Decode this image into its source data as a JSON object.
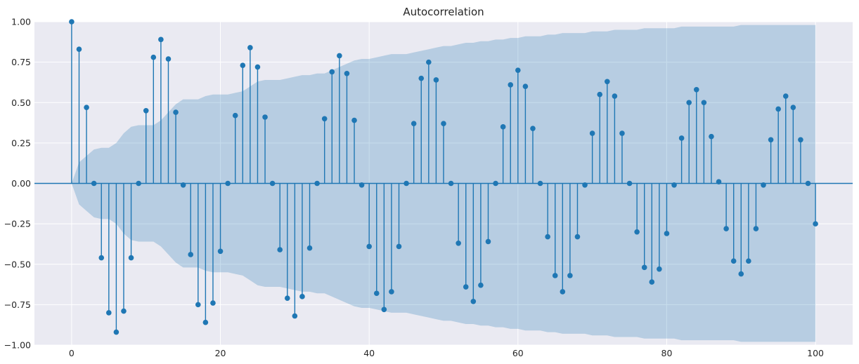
{
  "chart_data": {
    "type": "stem",
    "title": "Autocorrelation",
    "xlabel": "",
    "ylabel": "",
    "xlim": [
      -5,
      105
    ],
    "ylim": [
      -1.0,
      1.0
    ],
    "xticks": [
      0,
      20,
      40,
      60,
      80,
      100
    ],
    "xtick_labels": [
      "0",
      "20",
      "40",
      "60",
      "80",
      "100"
    ],
    "yticks": [
      1.0,
      0.75,
      0.5,
      0.25,
      0.0,
      -0.25,
      -0.5,
      -0.75,
      -1.0
    ],
    "ytick_labels": [
      "1.00",
      "0.75",
      "0.50",
      "0.25",
      "0.00",
      "−0.25",
      "−0.50",
      "−0.75",
      "−1.00"
    ],
    "grid": true,
    "colors": {
      "stem": "#1f77b4",
      "band": "#1f77b4",
      "background": "#eaeaf2",
      "grid": "#ffffff"
    },
    "series": [
      {
        "x": [
          0,
          1,
          2,
          3,
          4,
          5,
          6,
          7,
          8,
          9,
          10,
          11,
          12,
          13,
          14,
          15,
          16,
          17,
          18,
          19,
          20,
          21,
          22,
          23,
          24,
          25,
          26,
          27,
          28,
          29,
          30,
          31,
          32,
          33,
          34,
          35,
          36,
          37,
          38,
          39,
          40,
          41,
          42,
          43,
          44,
          45,
          46,
          47,
          48,
          49,
          50,
          51,
          52,
          53,
          54,
          55,
          56,
          57,
          58,
          59,
          60,
          61,
          62,
          63,
          64,
          65,
          66,
          67,
          68,
          69,
          70,
          71,
          72,
          73,
          74,
          75,
          76,
          77,
          78,
          79,
          80,
          81,
          82,
          83,
          84,
          85,
          86,
          87,
          88,
          89,
          90,
          91,
          92,
          93,
          94,
          95,
          96,
          97,
          98,
          99,
          100
        ],
        "values": [
          1.0,
          0.83,
          0.47,
          0.0,
          -0.46,
          -0.8,
          -0.92,
          -0.79,
          -0.46,
          0.0,
          0.45,
          0.78,
          0.89,
          0.77,
          0.44,
          -0.01,
          -0.44,
          -0.75,
          -0.86,
          -0.74,
          -0.42,
          0.0,
          0.42,
          0.73,
          0.84,
          0.72,
          0.41,
          0.0,
          -0.41,
          -0.71,
          -0.82,
          -0.7,
          -0.4,
          0.0,
          0.4,
          0.69,
          0.79,
          0.68,
          0.39,
          -0.01,
          -0.39,
          -0.68,
          -0.78,
          -0.67,
          -0.39,
          0.0,
          0.37,
          0.65,
          0.75,
          0.64,
          0.37,
          0.0,
          -0.37,
          -0.64,
          -0.73,
          -0.63,
          -0.36,
          0.0,
          0.35,
          0.61,
          0.7,
          0.6,
          0.34,
          0.0,
          -0.33,
          -0.57,
          -0.67,
          -0.57,
          -0.33,
          -0.01,
          0.31,
          0.55,
          0.63,
          0.54,
          0.31,
          0.0,
          -0.3,
          -0.52,
          -0.61,
          -0.53,
          -0.31,
          -0.01,
          0.28,
          0.5,
          0.58,
          0.5,
          0.29,
          0.01,
          -0.28,
          -0.48,
          -0.56,
          -0.48,
          -0.28,
          -0.01,
          0.27,
          0.46,
          0.54,
          0.47,
          0.27,
          0.0,
          -0.25
        ]
      }
    ],
    "confidence_band": {
      "x": [
        0,
        1,
        2,
        3,
        4,
        5,
        6,
        7,
        8,
        9,
        10,
        11,
        12,
        13,
        14,
        15,
        16,
        17,
        18,
        19,
        20,
        21,
        22,
        23,
        24,
        25,
        26,
        27,
        28,
        29,
        30,
        31,
        32,
        33,
        34,
        35,
        36,
        37,
        38,
        39,
        40,
        41,
        42,
        43,
        44,
        45,
        46,
        47,
        48,
        49,
        50,
        51,
        52,
        53,
        54,
        55,
        56,
        57,
        58,
        59,
        60,
        61,
        62,
        63,
        64,
        65,
        66,
        67,
        68,
        69,
        70,
        71,
        72,
        73,
        74,
        75,
        76,
        77,
        78,
        79,
        80,
        81,
        82,
        83,
        84,
        85,
        86,
        87,
        88,
        89,
        90,
        91,
        92,
        93,
        94,
        95,
        96,
        97,
        98,
        99,
        100
      ],
      "halfwidth": [
        0.0,
        0.13,
        0.17,
        0.21,
        0.22,
        0.22,
        0.25,
        0.31,
        0.35,
        0.36,
        0.36,
        0.36,
        0.39,
        0.44,
        0.49,
        0.52,
        0.52,
        0.52,
        0.54,
        0.55,
        0.55,
        0.55,
        0.56,
        0.57,
        0.6,
        0.63,
        0.64,
        0.64,
        0.64,
        0.65,
        0.66,
        0.67,
        0.67,
        0.68,
        0.68,
        0.7,
        0.72,
        0.74,
        0.76,
        0.77,
        0.77,
        0.78,
        0.79,
        0.8,
        0.8,
        0.8,
        0.81,
        0.82,
        0.83,
        0.84,
        0.85,
        0.85,
        0.86,
        0.87,
        0.87,
        0.88,
        0.88,
        0.89,
        0.89,
        0.9,
        0.9,
        0.91,
        0.91,
        0.91,
        0.92,
        0.92,
        0.93,
        0.93,
        0.93,
        0.93,
        0.94,
        0.94,
        0.94,
        0.95,
        0.95,
        0.95,
        0.95,
        0.96,
        0.96,
        0.96,
        0.96,
        0.96,
        0.97,
        0.97,
        0.97,
        0.97,
        0.97,
        0.97,
        0.97,
        0.97,
        0.98,
        0.98,
        0.98,
        0.98,
        0.98,
        0.98,
        0.98,
        0.98,
        0.98,
        0.98,
        0.98
      ]
    }
  }
}
